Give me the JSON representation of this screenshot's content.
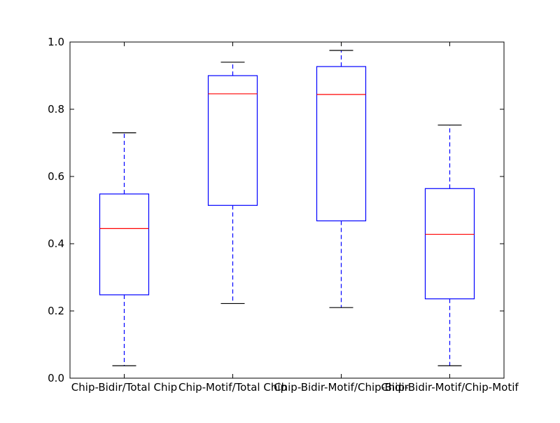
{
  "chart_data": {
    "type": "box",
    "categories": [
      "Chip-Bidir/Total Chip",
      "Chip-Motif/Total Chip",
      "Chip-Bidir-Motif/Chip-Bidir",
      "Chip-Bidir-Motif/Chip-Motif"
    ],
    "boxes": [
      {
        "whisker_low": 0.037,
        "q1": 0.248,
        "median": 0.445,
        "q3": 0.548,
        "whisker_high": 0.73
      },
      {
        "whisker_low": 0.222,
        "q1": 0.514,
        "median": 0.846,
        "q3": 0.9,
        "whisker_high": 0.94
      },
      {
        "whisker_low": 0.21,
        "q1": 0.468,
        "median": 0.844,
        "q3": 0.927,
        "whisker_high": 0.975
      },
      {
        "whisker_low": 0.037,
        "q1": 0.236,
        "median": 0.428,
        "q3": 0.564,
        "whisker_high": 0.753
      }
    ],
    "yticks": [
      "0.0",
      "0.2",
      "0.4",
      "0.6",
      "0.8",
      "1.0"
    ],
    "ylim": [
      0,
      1
    ],
    "grid": false,
    "title": "",
    "xlabel": "",
    "ylabel": "",
    "colors": {
      "box": "#0000ff",
      "median": "#ff0000",
      "cap": "#000000",
      "axes": "#000000"
    }
  }
}
